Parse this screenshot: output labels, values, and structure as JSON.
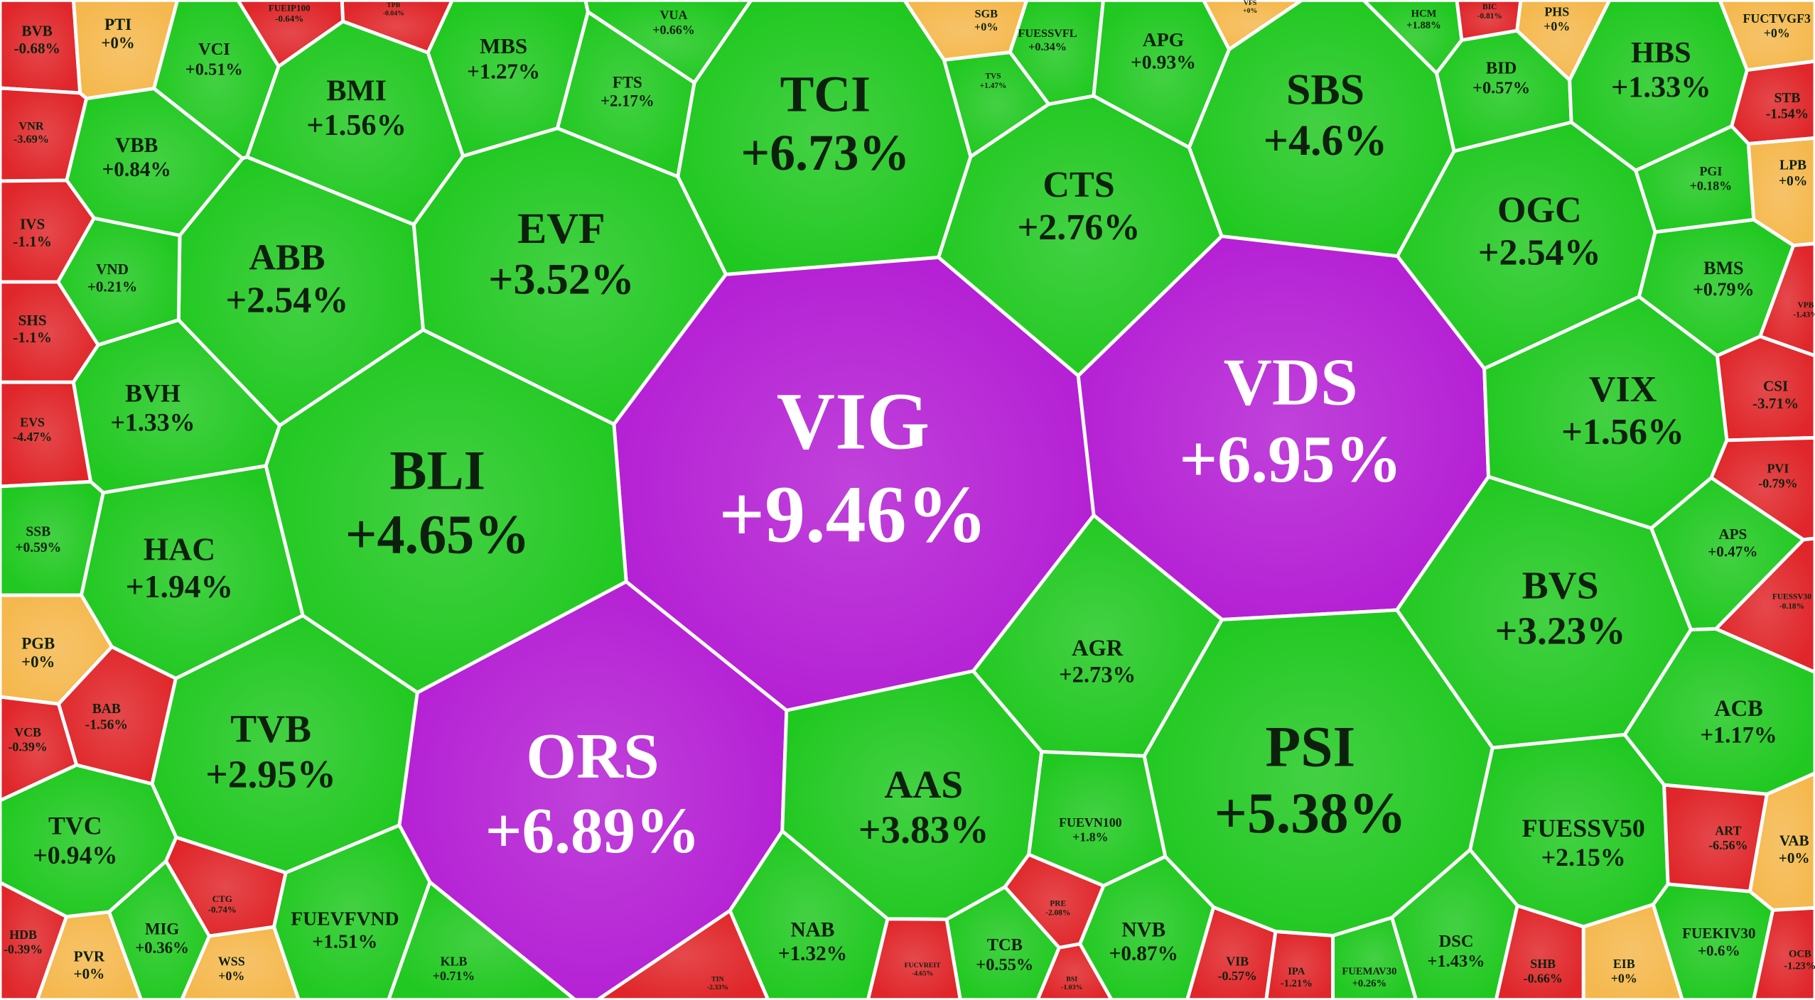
{
  "chart_data": {
    "type": "voronoi-treemap",
    "categories": [
      "BVB",
      "PTI",
      "FUEIP100",
      "TPB",
      "VCI",
      "MBS",
      "VUA",
      "BMI",
      "FTS",
      "TCI",
      "SGB",
      "FUESSVFL",
      "APG",
      "VFS",
      "SBS",
      "HCM",
      "BIC",
      "PHS",
      "FUCTVGF3",
      "VNR",
      "VBB",
      "TVS",
      "BID",
      "HBS",
      "STB",
      "CTS",
      "IVS",
      "ABB",
      "EVF",
      "VND",
      "OGC",
      "PGI",
      "LPB",
      "BMS",
      "VPB",
      "SHS",
      "VIG",
      "VDS",
      "BVH",
      "EVS",
      "BLI",
      "CSI",
      "VIX",
      "PVI",
      "SSB",
      "HAC",
      "APS",
      "BVS",
      "FUESSV30",
      "PGB",
      "AGR",
      "BAB",
      "ACB",
      "VCB",
      "TVB",
      "ORS",
      "PSI",
      "AAS",
      "FUEVN100",
      "FUESSV50",
      "ART",
      "VAB",
      "TVC",
      "CTG",
      "PRE",
      "MIG",
      "FUEVFVND",
      "NAB",
      "NVB",
      "TCB",
      "DSC",
      "FUEKIV30",
      "HDB",
      "PVR",
      "WSS",
      "KLB",
      "FUCVREIT",
      "TIN",
      "BSI",
      "VIB",
      "IPA",
      "FUEMAV30",
      "SHB",
      "EIB",
      "OCB"
    ],
    "values": [
      -0.68,
      0,
      -0.64,
      -0.04,
      0.51,
      1.27,
      0.66,
      1.56,
      2.17,
      6.73,
      0,
      0.34,
      0.93,
      0,
      4.6,
      1.88,
      -0.81,
      0,
      0,
      -3.69,
      0.84,
      1.47,
      0.57,
      1.33,
      -1.54,
      2.76,
      -1.1,
      2.54,
      3.52,
      0.21,
      2.54,
      0.18,
      0,
      0.79,
      -1.43,
      -1.1,
      9.46,
      6.95,
      1.33,
      -4.47,
      4.65,
      -3.71,
      1.56,
      -0.79,
      0.59,
      1.94,
      0.47,
      3.23,
      -0.18,
      0,
      2.73,
      -1.56,
      1.17,
      -0.39,
      2.95,
      6.89,
      5.38,
      3.83,
      1.8,
      2.15,
      -6.56,
      0,
      0.94,
      -0.74,
      -2.08,
      0.36,
      1.51,
      1.32,
      0.87,
      0.55,
      1.43,
      0.6,
      -0.39,
      0,
      0,
      0.71,
      -4.65,
      -2.33,
      -1.03,
      -0.57,
      -1.21,
      0.26,
      -0.66,
      0,
      -1.23
    ],
    "value_labels": [
      "-0.68%",
      "+0%",
      "-0.64%",
      "-0.04%",
      "+0.51%",
      "+1.27%",
      "+0.66%",
      "+1.56%",
      "+2.17%",
      "+6.73%",
      "+0%",
      "+0.34%",
      "+0.93%",
      "+0%",
      "+4.6%",
      "+1.88%",
      "-0.81%",
      "+0%",
      "+0%",
      "-3.69%",
      "+0.84%",
      "+1.47%",
      "+0.57%",
      "+1.33%",
      "-1.54%",
      "+2.76%",
      "-1.1%",
      "+2.54%",
      "+3.52%",
      "+0.21%",
      "+2.54%",
      "+0.18%",
      "+0%",
      "+0.79%",
      "-1.43%",
      "-1.1%",
      "+9.46%",
      "+6.95%",
      "+1.33%",
      "-4.47%",
      "+4.65%",
      "-3.71%",
      "+1.56%",
      "-0.79%",
      "+0.59%",
      "+1.94%",
      "+0.47%",
      "+3.23%",
      "-0.18%",
      "+0%",
      "+2.73%",
      "-1.56%",
      "+1.17%",
      "-0.39%",
      "+2.95%",
      "+6.89%",
      "+5.38%",
      "+3.83%",
      "+1.8%",
      "+2.15%",
      "-6.56%",
      "+0%",
      "+0.94%",
      "-0.74%",
      "-2.08%",
      "+0.36%",
      "+1.51%",
      "+1.32%",
      "+0.87%",
      "+0.55%",
      "+1.43%",
      "+0.6%",
      "-0.39%",
      "+0%",
      "+0%",
      "+0.71%",
      "-4.65%",
      "-2.33%",
      "-1.03%",
      "-0.57%",
      "-1.21%",
      "+0.26%",
      "-0.66%",
      "+0%",
      "-1.23%"
    ],
    "colors": [
      "#e0262a",
      "#f5b84e",
      "#e0262a",
      "#e0262a",
      "#20c820",
      "#20c820",
      "#20c820",
      "#20c820",
      "#20c820",
      "#20c820",
      "#f5b84e",
      "#20c820",
      "#20c820",
      "#f5b84e",
      "#20c820",
      "#20c820",
      "#e0262a",
      "#f5b84e",
      "#f5b84e",
      "#e0262a",
      "#20c820",
      "#20c820",
      "#20c820",
      "#20c820",
      "#e0262a",
      "#20c820",
      "#e0262a",
      "#20c820",
      "#20c820",
      "#20c820",
      "#20c820",
      "#20c820",
      "#f5b84e",
      "#20c820",
      "#e0262a",
      "#e0262a",
      "#b41ed4",
      "#b41ed4",
      "#20c820",
      "#e0262a",
      "#20c820",
      "#e0262a",
      "#20c820",
      "#e0262a",
      "#20c820",
      "#20c820",
      "#20c820",
      "#20c820",
      "#e0262a",
      "#f5b84e",
      "#20c820",
      "#e0262a",
      "#20c820",
      "#e0262a",
      "#20c820",
      "#b41ed4",
      "#20c820",
      "#20c820",
      "#20c820",
      "#20c820",
      "#e0262a",
      "#f5b84e",
      "#20c820",
      "#e0262a",
      "#e0262a",
      "#20c820",
      "#20c820",
      "#20c820",
      "#20c820",
      "#20c820",
      "#20c820",
      "#20c820",
      "#e0262a",
      "#f5b84e",
      "#f5b84e",
      "#20c820",
      "#e0262a",
      "#e0262a",
      "#e0262a",
      "#e0262a",
      "#e0262a",
      "#20c820",
      "#e0262a",
      "#f5b84e",
      "#e0262a"
    ]
  }
}
